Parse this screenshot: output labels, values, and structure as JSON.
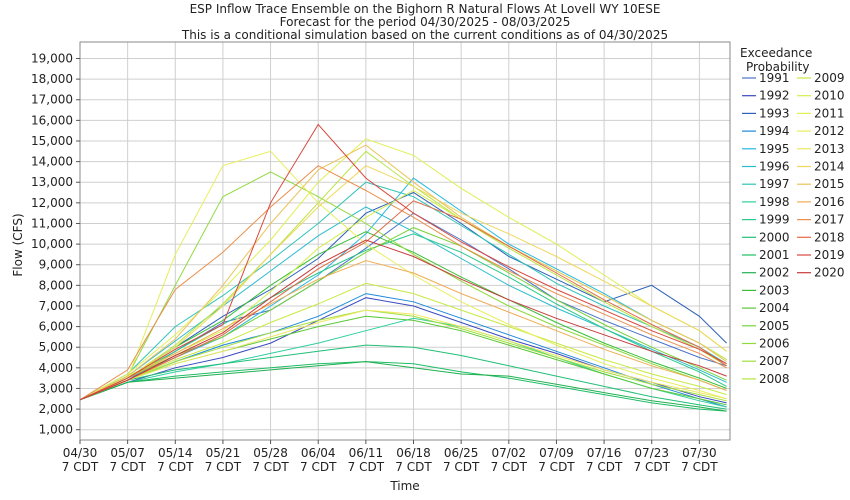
{
  "chart_data": {
    "type": "line",
    "title": "ESP Inflow Trace Ensemble on the Bighorn R Natural Flows At Lovell WY 10ESE",
    "subtitle_1": "Forecast for the period 04/30/2025 - 08/03/2025",
    "subtitle_2": "This is a conditional simulation based on the current conditions as of 04/30/2025",
    "xlabel": "Time",
    "ylabel": "Flow (CFS)",
    "ylim": [
      500,
      19800
    ],
    "y_ticks": [
      1000,
      2000,
      3000,
      4000,
      5000,
      6000,
      7000,
      8000,
      9000,
      10000,
      11000,
      12000,
      13000,
      14000,
      15000,
      16000,
      17000,
      18000,
      19000
    ],
    "y_tick_labels": [
      "1,000",
      "2,000",
      "3,000",
      "4,000",
      "5,000",
      "6,000",
      "7,000",
      "8,000",
      "9,000",
      "10,000",
      "11,000",
      "12,000",
      "13,000",
      "14,000",
      "15,000",
      "16,000",
      "17,000",
      "18,000",
      "19,000"
    ],
    "x_tick_days": [
      0,
      7,
      14,
      21,
      28,
      35,
      42,
      49,
      56,
      63,
      70,
      77,
      84,
      91
    ],
    "x_tick_dates": [
      "04/30",
      "05/07",
      "05/14",
      "05/21",
      "05/28",
      "06/04",
      "06/11",
      "06/18",
      "06/25",
      "07/02",
      "07/09",
      "07/16",
      "07/23",
      "07/30"
    ],
    "x_tick_suffix": "7 CDT",
    "x_range_days": [
      0,
      95.5
    ],
    "grid": true,
    "legend_title_1": "Exceedance",
    "legend_title_2": "Probability",
    "legend_placement": "right",
    "series": [
      {
        "name": "1991",
        "color": "#4b73c8",
        "x": [
          0,
          7,
          14,
          21,
          28,
          35,
          42,
          49,
          56,
          63,
          70,
          77,
          84,
          91,
          95
        ],
        "y": [
          2450,
          3400,
          4800,
          6200,
          6800,
          8200,
          9800,
          11500,
          10200,
          8800,
          7300,
          6300,
          5400,
          4500,
          4100
        ]
      },
      {
        "name": "1992",
        "color": "#3a4bbf",
        "x": [
          0,
          7,
          14,
          21,
          28,
          35,
          42,
          49,
          56,
          63,
          70,
          77,
          84,
          91,
          95
        ],
        "y": [
          2450,
          3300,
          4000,
          4500,
          5200,
          6300,
          7400,
          7000,
          6200,
          5400,
          4700,
          3900,
          3300,
          2600,
          2300
        ]
      },
      {
        "name": "1993",
        "color": "#2c5fb8",
        "x": [
          0,
          7,
          14,
          21,
          28,
          35,
          42,
          49,
          56,
          63,
          70,
          77,
          84,
          91,
          95
        ],
        "y": [
          2450,
          3500,
          5000,
          6500,
          7800,
          9300,
          11500,
          12500,
          11000,
          9400,
          8300,
          7200,
          8000,
          6500,
          5200
        ]
      },
      {
        "name": "1994",
        "color": "#1e88d8",
        "x": [
          0,
          7,
          14,
          21,
          28,
          35,
          42,
          49,
          56,
          63,
          70,
          77,
          84,
          91,
          95
        ],
        "y": [
          2450,
          3400,
          4300,
          5100,
          5700,
          6500,
          7600,
          7200,
          6400,
          5600,
          4800,
          4000,
          3200,
          2500,
          2100
        ]
      },
      {
        "name": "1995",
        "color": "#26b8e0",
        "x": [
          0,
          7,
          14,
          21,
          28,
          35,
          42,
          49,
          56,
          63,
          70,
          77,
          84,
          91,
          95
        ],
        "y": [
          2450,
          3500,
          4500,
          5500,
          7000,
          8500,
          10500,
          13200,
          11600,
          10000,
          8800,
          7600,
          6300,
          5200,
          4400
        ]
      },
      {
        "name": "1996",
        "color": "#2bbccc",
        "x": [
          0,
          7,
          14,
          21,
          28,
          35,
          42,
          49,
          56,
          63,
          70,
          77,
          84,
          91,
          95
        ],
        "y": [
          2450,
          3600,
          5300,
          7000,
          8700,
          10400,
          11800,
          10600,
          9300,
          8000,
          6900,
          5900,
          4900,
          3900,
          3300
        ]
      },
      {
        "name": "1997",
        "color": "#30c4b8",
        "x": [
          0,
          7,
          14,
          21,
          28,
          35,
          42,
          49,
          56,
          63,
          70,
          77,
          84,
          91,
          95
        ],
        "y": [
          2450,
          3700,
          6000,
          7500,
          9200,
          11000,
          13000,
          12300,
          10900,
          9500,
          8100,
          7000,
          6000,
          5000,
          4200
        ]
      },
      {
        "name": "1998",
        "color": "#2fcf9f",
        "x": [
          0,
          7,
          14,
          21,
          28,
          35,
          42,
          49,
          56,
          63,
          70,
          77,
          84,
          91,
          95
        ],
        "y": [
          2450,
          3300,
          3800,
          4200,
          4700,
          5200,
          5800,
          6400,
          6000,
          5300,
          4500,
          3700,
          3000,
          2400,
          2100
        ]
      },
      {
        "name": "1999",
        "color": "#28c98a",
        "x": [
          0,
          7,
          14,
          21,
          28,
          35,
          42,
          49,
          56,
          63,
          70,
          77,
          84,
          91,
          95
        ],
        "y": [
          2450,
          3500,
          4800,
          6100,
          7400,
          8600,
          9700,
          10500,
          9600,
          8400,
          7100,
          5900,
          4800,
          3800,
          3100
        ]
      },
      {
        "name": "2000",
        "color": "#22bf78",
        "x": [
          0,
          7,
          14,
          21,
          28,
          35,
          42,
          49,
          56,
          63,
          70,
          77,
          84,
          91,
          95
        ],
        "y": [
          2450,
          3400,
          3900,
          4200,
          4500,
          4800,
          5100,
          5000,
          4600,
          4100,
          3600,
          3100,
          2600,
          2200,
          2000
        ]
      },
      {
        "name": "2001",
        "color": "#1fbd65",
        "x": [
          0,
          7,
          14,
          21,
          28,
          35,
          42,
          49,
          56,
          63,
          70,
          77,
          84,
          91,
          95
        ],
        "y": [
          2450,
          3300,
          3600,
          3800,
          4000,
          4200,
          4300,
          4200,
          3800,
          3500,
          3100,
          2700,
          2300,
          2000,
          1900
        ]
      },
      {
        "name": "2002",
        "color": "#21b050",
        "x": [
          0,
          7,
          14,
          21,
          28,
          35,
          42,
          49,
          56,
          63,
          70,
          77,
          84,
          91,
          95
        ],
        "y": [
          2450,
          3300,
          3500,
          3700,
          3900,
          4100,
          4300,
          4000,
          3700,
          3600,
          3200,
          2800,
          2400,
          2100,
          1900
        ]
      },
      {
        "name": "2003",
        "color": "#3bbf3b",
        "x": [
          0,
          7,
          14,
          21,
          28,
          35,
          42,
          49,
          56,
          63,
          70,
          77,
          84,
          91,
          95
        ],
        "y": [
          2450,
          3500,
          5000,
          6300,
          8000,
          9500,
          10600,
          9600,
          8400,
          7300,
          6200,
          5200,
          4300,
          3500,
          3000
        ]
      },
      {
        "name": "2004",
        "color": "#5cc83a",
        "x": [
          0,
          7,
          14,
          21,
          28,
          35,
          42,
          49,
          56,
          63,
          70,
          77,
          84,
          91,
          95
        ],
        "y": [
          2450,
          3400,
          4200,
          4800,
          5400,
          6000,
          6500,
          6300,
          5800,
          5100,
          4400,
          3700,
          3000,
          2500,
          2200
        ]
      },
      {
        "name": "2005",
        "color": "#79d23a",
        "x": [
          0,
          7,
          14,
          21,
          28,
          35,
          42,
          49,
          56,
          63,
          70,
          77,
          84,
          91,
          95
        ],
        "y": [
          2450,
          3500,
          4600,
          5500,
          6800,
          8200,
          9600,
          10800,
          9900,
          8600,
          7300,
          6100,
          5000,
          4000,
          3400
        ]
      },
      {
        "name": "2006",
        "color": "#8fda3c",
        "x": [
          0,
          7,
          14,
          21,
          28,
          35,
          42,
          49,
          56,
          63,
          70,
          77,
          84,
          91,
          95
        ],
        "y": [
          2450,
          3600,
          8000,
          12300,
          13500,
          12300,
          11000,
          9500,
          8200,
          7000,
          6000,
          5100,
          4200,
          3400,
          2900
        ]
      },
      {
        "name": "2007",
        "color": "#a4e03c",
        "x": [
          0,
          7,
          14,
          21,
          28,
          35,
          42,
          49,
          56,
          63,
          70,
          77,
          84,
          91,
          95
        ],
        "y": [
          2450,
          3400,
          4300,
          5000,
          5700,
          6300,
          6800,
          6500,
          5900,
          5200,
          4500,
          3800,
          3200,
          2700,
          2400
        ]
      },
      {
        "name": "2008",
        "color": "#b6e63f",
        "x": [
          0,
          7,
          14,
          21,
          28,
          35,
          42,
          49,
          56,
          63,
          70,
          77,
          84,
          91,
          95
        ],
        "y": [
          2450,
          3500,
          5100,
          7100,
          9500,
          12000,
          14500,
          12800,
          11200,
          9800,
          8500,
          7200,
          6000,
          4900,
          4100
        ]
      },
      {
        "name": "2009",
        "color": "#c6ea44",
        "x": [
          0,
          7,
          14,
          21,
          28,
          35,
          42,
          49,
          56,
          63,
          70,
          77,
          84,
          91,
          95
        ],
        "y": [
          2450,
          3400,
          4400,
          5200,
          6200,
          7100,
          8100,
          7600,
          6800,
          6000,
          5200,
          4400,
          3700,
          3100,
          2700
        ]
      },
      {
        "name": "2010",
        "color": "#d3ee4a",
        "x": [
          0,
          7,
          14,
          21,
          28,
          35,
          42,
          49,
          56,
          63,
          70,
          77,
          84,
          91,
          95
        ],
        "y": [
          2450,
          3600,
          4700,
          5800,
          7700,
          9800,
          11300,
          12600,
          11200,
          9900,
          8700,
          7500,
          6300,
          5200,
          4400
        ]
      },
      {
        "name": "2011",
        "color": "#dff052",
        "x": [
          0,
          7,
          14,
          21,
          28,
          35,
          42,
          49,
          56,
          63,
          70,
          77,
          84,
          91,
          95
        ],
        "y": [
          2450,
          3700,
          5600,
          7800,
          10200,
          13000,
          15100,
          14300,
          12700,
          11300,
          10000,
          8500,
          7000,
          5800,
          4800
        ]
      },
      {
        "name": "2012",
        "color": "#e8ee5c",
        "x": [
          0,
          7,
          14,
          21,
          28,
          35,
          42,
          49,
          56,
          63,
          70,
          77,
          84,
          91,
          95
        ],
        "y": [
          2450,
          3500,
          9500,
          13800,
          14500,
          12000,
          10000,
          8500,
          7200,
          6100,
          5100,
          4200,
          3500,
          2900,
          2500
        ]
      },
      {
        "name": "2013",
        "color": "#ede85f",
        "x": [
          0,
          7,
          14,
          21,
          28,
          35,
          42,
          49,
          56,
          63,
          70,
          77,
          84,
          91,
          95
        ],
        "y": [
          2450,
          3400,
          4200,
          4800,
          5500,
          6200,
          6800,
          6600,
          6000,
          5300,
          4600,
          3900,
          3300,
          2800,
          2500
        ]
      },
      {
        "name": "2014",
        "color": "#eed85c",
        "x": [
          0,
          7,
          14,
          21,
          28,
          35,
          42,
          49,
          56,
          63,
          70,
          77,
          84,
          91,
          95
        ],
        "y": [
          2450,
          3500,
          5000,
          7000,
          9500,
          11800,
          13800,
          12800,
          11500,
          10500,
          9400,
          8200,
          7000,
          5800,
          4800
        ]
      },
      {
        "name": "2015",
        "color": "#ecc35a",
        "x": [
          0,
          7,
          14,
          21,
          28,
          35,
          42,
          49,
          56,
          63,
          70,
          77,
          84,
          91,
          95
        ],
        "y": [
          2450,
          3600,
          5400,
          8000,
          11000,
          13600,
          14800,
          13000,
          11300,
          9900,
          8700,
          7500,
          6300,
          5200,
          4300
        ]
      },
      {
        "name": "2016",
        "color": "#eeae55",
        "x": [
          0,
          7,
          14,
          21,
          28,
          35,
          42,
          49,
          56,
          63,
          70,
          77,
          84,
          91,
          95
        ],
        "y": [
          2450,
          3500,
          4700,
          5900,
          7100,
          8300,
          9200,
          8600,
          7600,
          6700,
          5800,
          4900,
          4100,
          3400,
          2900
        ]
      },
      {
        "name": "2017",
        "color": "#ea8f4d",
        "x": [
          0,
          7,
          14,
          21,
          28,
          35,
          42,
          49,
          56,
          63,
          70,
          77,
          84,
          91,
          95
        ],
        "y": [
          2450,
          3900,
          7800,
          9600,
          11800,
          13800,
          12600,
          11300,
          9900,
          8700,
          7600,
          6600,
          5600,
          4700,
          4000
        ]
      },
      {
        "name": "2018",
        "color": "#e36a46",
        "x": [
          0,
          7,
          14,
          21,
          28,
          35,
          42,
          49,
          56,
          63,
          70,
          77,
          84,
          91,
          95
        ],
        "y": [
          2450,
          3400,
          4500,
          5600,
          7200,
          8800,
          10100,
          12100,
          11200,
          9900,
          8600,
          7300,
          6100,
          5000,
          4100
        ]
      },
      {
        "name": "2019",
        "color": "#d9483d",
        "x": [
          0,
          7,
          14,
          21,
          28,
          35,
          42,
          49,
          56,
          63,
          70,
          77,
          84,
          91,
          95
        ],
        "y": [
          2450,
          3500,
          4900,
          6100,
          12000,
          15800,
          13200,
          11500,
          10100,
          8900,
          7800,
          6800,
          5800,
          4900,
          4200
        ]
      },
      {
        "name": "2020",
        "color": "#c83a3a",
        "x": [
          0,
          7,
          14,
          21,
          28,
          35,
          42,
          49,
          56,
          63,
          70,
          77,
          84,
          91,
          95
        ],
        "y": [
          2450,
          3400,
          4600,
          5700,
          7400,
          9000,
          10200,
          9400,
          8300,
          7300,
          6400,
          5600,
          4800,
          4100,
          3600
        ]
      }
    ]
  }
}
